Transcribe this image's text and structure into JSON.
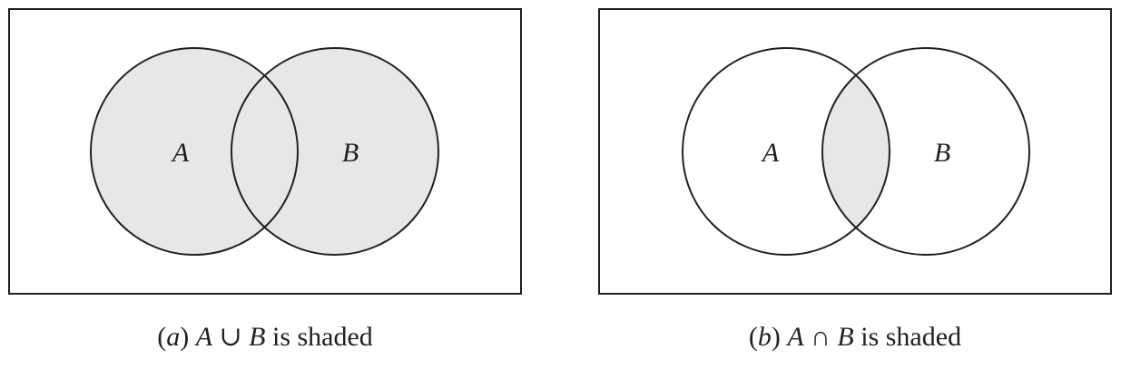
{
  "colors": {
    "stroke": "#231f20",
    "shade": "#e6e7e8",
    "background": "#ffffff"
  },
  "panels": [
    {
      "id": "a",
      "shaded_region": "union",
      "set_a_label": "A",
      "set_b_label": "B",
      "caption": {
        "paren_open": "(",
        "letter": "a",
        "paren_close": ")",
        "set_a": "A",
        "operator": "∪",
        "set_b": "B",
        "suffix": "is shaded"
      }
    },
    {
      "id": "b",
      "shaded_region": "intersection",
      "set_a_label": "A",
      "set_b_label": "B",
      "caption": {
        "paren_open": "(",
        "letter": "b",
        "paren_close": ")",
        "set_a": "A",
        "operator": "∩",
        "set_b": "B",
        "suffix": "is shaded"
      }
    }
  ]
}
